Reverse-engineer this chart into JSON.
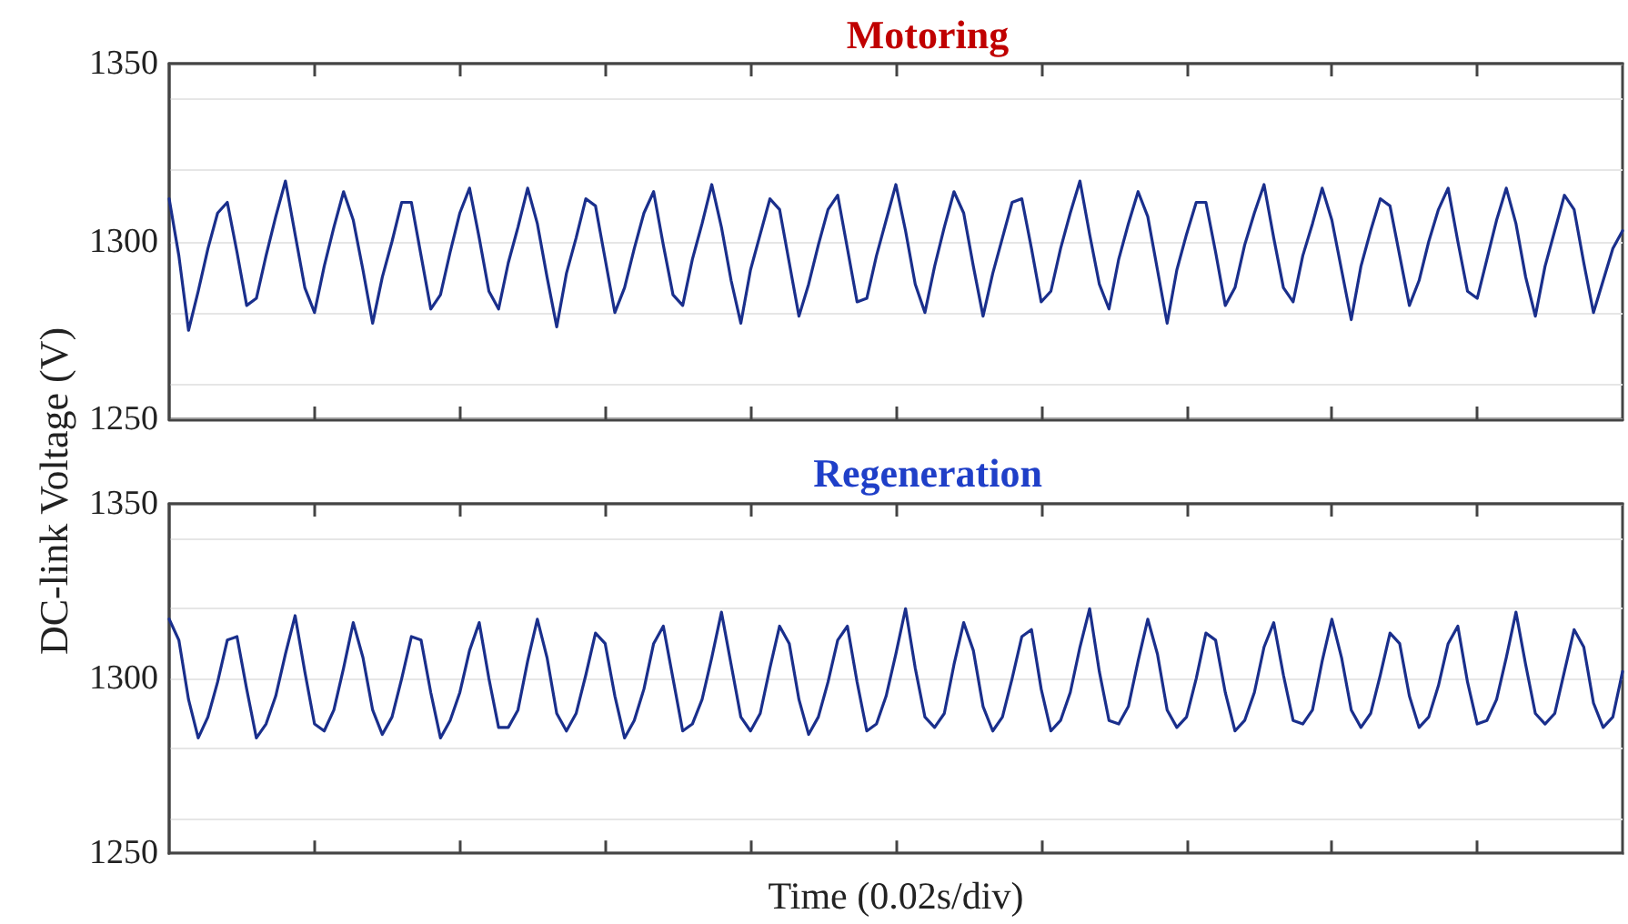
{
  "chart_data": [
    {
      "type": "line",
      "title": "Motoring",
      "ylabel": "DC-link Voltage (V)",
      "categories": [
        null,
        null,
        null,
        null,
        null,
        null,
        null,
        null,
        null,
        null,
        null,
        null,
        null,
        null,
        null,
        null,
        null,
        null,
        null,
        null,
        null,
        null,
        null,
        null,
        null,
        null,
        null,
        null,
        null,
        null,
        null,
        null,
        null,
        null,
        null,
        null,
        null,
        null,
        null,
        null,
        null,
        null,
        null,
        null,
        null,
        null,
        null,
        null,
        null,
        null,
        null,
        null,
        null,
        null,
        null,
        null,
        null,
        null,
        null,
        null,
        null,
        null,
        null,
        null,
        null,
        null,
        null,
        null,
        null,
        null,
        null,
        null,
        null,
        null,
        null,
        null,
        null,
        null,
        null,
        null,
        null,
        null,
        null,
        null,
        null,
        null,
        null,
        null,
        null,
        null,
        null,
        null,
        null,
        null,
        null,
        null,
        null,
        null,
        null,
        null,
        null,
        null,
        null,
        null,
        null,
        null,
        null,
        null,
        null,
        null,
        null,
        null,
        null,
        null,
        null,
        null,
        null,
        null,
        null,
        null,
        null,
        null,
        null,
        null,
        null,
        null,
        null,
        null,
        null,
        null,
        null,
        null,
        null,
        null,
        null,
        null,
        null,
        null,
        null,
        null,
        null,
        null,
        null,
        null,
        null,
        null,
        null,
        null,
        null,
        null,
        null
      ],
      "ylim": [
        1250,
        1350
      ],
      "yticks": [
        1250,
        1300,
        1350
      ],
      "grid": "y",
      "marker": "none",
      "line_style": "solid",
      "series": [
        {
          "color": "#1a2f8c",
          "values": [
            1312,
            1296,
            1275,
            1286,
            1298,
            1308,
            1311,
            1297,
            1282,
            1284,
            1296,
            1307,
            1317,
            1302,
            1287,
            1280,
            1293,
            1304,
            1314,
            1306,
            1292,
            1277,
            1290,
            1300,
            1311,
            1311,
            1296,
            1281,
            1285,
            1297,
            1308,
            1315,
            1301,
            1286,
            1281,
            1294,
            1304,
            1315,
            1305,
            1290,
            1276,
            1291,
            1301,
            1312,
            1310,
            1295,
            1280,
            1287,
            1298,
            1308,
            1314,
            1299,
            1285,
            1282,
            1295,
            1305,
            1316,
            1304,
            1289,
            1277,
            1292,
            1302,
            1312,
            1309,
            1294,
            1279,
            1288,
            1299,
            1309,
            1313,
            1298,
            1283,
            1284,
            1296,
            1306,
            1316,
            1303,
            1288,
            1280,
            1293,
            1304,
            1314,
            1308,
            1293,
            1279,
            1291,
            1301,
            1311,
            1312,
            1298,
            1283,
            1286,
            1298,
            1308,
            1317,
            1302,
            1288,
            1281,
            1295,
            1305,
            1314,
            1307,
            1292,
            1277,
            1292,
            1302,
            1311,
            1311,
            1297,
            1282,
            1287,
            1299,
            1308,
            1316,
            1301,
            1287,
            1283,
            1296,
            1305,
            1315,
            1306,
            1292,
            1278,
            1293,
            1303,
            1312,
            1310,
            1296,
            1282,
            1289,
            1300,
            1309,
            1315,
            1300,
            1286,
            1284,
            1295,
            1306,
            1315,
            1305,
            1290,
            1279,
            1293,
            1303,
            1313,
            1309,
            1294,
            1280,
            1289,
            1298,
            1303
          ]
        }
      ]
    },
    {
      "type": "line",
      "title": "Regeneration",
      "xlabel": "Time (0.02s/div)",
      "categories": [
        null,
        null,
        null,
        null,
        null,
        null,
        null,
        null,
        null,
        null,
        null,
        null,
        null,
        null,
        null,
        null,
        null,
        null,
        null,
        null,
        null,
        null,
        null,
        null,
        null,
        null,
        null,
        null,
        null,
        null,
        null,
        null,
        null,
        null,
        null,
        null,
        null,
        null,
        null,
        null,
        null,
        null,
        null,
        null,
        null,
        null,
        null,
        null,
        null,
        null,
        null,
        null,
        null,
        null,
        null,
        null,
        null,
        null,
        null,
        null,
        null,
        null,
        null,
        null,
        null,
        null,
        null,
        null,
        null,
        null,
        null,
        null,
        null,
        null,
        null,
        null,
        null,
        null,
        null,
        null,
        null,
        null,
        null,
        null,
        null,
        null,
        null,
        null,
        null,
        null,
        null,
        null,
        null,
        null,
        null,
        null,
        null,
        null,
        null,
        null,
        null,
        null,
        null,
        null,
        null,
        null,
        null,
        null,
        null,
        null,
        null,
        null,
        null,
        null,
        null,
        null,
        null,
        null,
        null,
        null,
        null,
        null,
        null,
        null,
        null,
        null,
        null,
        null,
        null,
        null,
        null,
        null,
        null,
        null,
        null,
        null,
        null,
        null,
        null,
        null,
        null,
        null,
        null,
        null,
        null,
        null,
        null,
        null,
        null,
        null,
        null
      ],
      "ylim": [
        1250,
        1350
      ],
      "yticks": [
        1250,
        1300,
        1350
      ],
      "grid": "y",
      "marker": "none",
      "line_style": "solid",
      "series": [
        {
          "color": "#1a2f8c",
          "values": [
            1317,
            1311,
            1294,
            1283,
            1289,
            1299,
            1311,
            1312,
            1297,
            1283,
            1287,
            1295,
            1307,
            1318,
            1302,
            1287,
            1285,
            1291,
            1303,
            1316,
            1306,
            1291,
            1284,
            1289,
            1300,
            1312,
            1311,
            1296,
            1283,
            1288,
            1296,
            1308,
            1316,
            1300,
            1286,
            1286,
            1291,
            1305,
            1317,
            1306,
            1290,
            1285,
            1290,
            1301,
            1313,
            1310,
            1295,
            1283,
            1288,
            1297,
            1310,
            1315,
            1300,
            1285,
            1287,
            1294,
            1306,
            1319,
            1304,
            1289,
            1285,
            1290,
            1303,
            1315,
            1310,
            1294,
            1284,
            1289,
            1299,
            1311,
            1315,
            1299,
            1285,
            1287,
            1295,
            1307,
            1320,
            1303,
            1289,
            1286,
            1290,
            1304,
            1316,
            1308,
            1292,
            1285,
            1289,
            1300,
            1312,
            1314,
            1297,
            1285,
            1288,
            1296,
            1309,
            1320,
            1302,
            1288,
            1287,
            1292,
            1305,
            1317,
            1307,
            1291,
            1286,
            1289,
            1300,
            1313,
            1311,
            1296,
            1285,
            1288,
            1296,
            1309,
            1316,
            1301,
            1288,
            1287,
            1291,
            1305,
            1317,
            1306,
            1291,
            1286,
            1290,
            1301,
            1313,
            1310,
            1295,
            1286,
            1289,
            1298,
            1310,
            1315,
            1299,
            1287,
            1288,
            1294,
            1306,
            1319,
            1304,
            1290,
            1287,
            1290,
            1302,
            1314,
            1309,
            1293,
            1286,
            1289,
            1302
          ]
        }
      ]
    }
  ]
}
